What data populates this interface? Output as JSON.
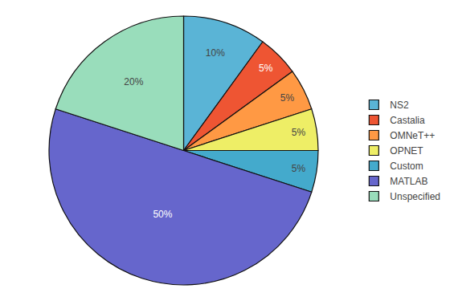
{
  "chart_data": {
    "type": "pie",
    "categories": [
      "NS2",
      "Castalia",
      "OMNeT++",
      "OPNET",
      "Custom",
      "MATLAB",
      "Unspecified"
    ],
    "values": [
      10,
      5,
      5,
      5,
      5,
      50,
      20
    ],
    "value_labels": [
      "10%",
      "5%",
      "5%",
      "5%",
      "5%",
      "50%",
      "20%"
    ],
    "colors": [
      "#5ab4d6",
      "#ee5533",
      "#ff9944",
      "#eeee66",
      "#44aacc",
      "#6666cc",
      "#99ddbb"
    ],
    "data_labels": true,
    "legend": "right"
  }
}
